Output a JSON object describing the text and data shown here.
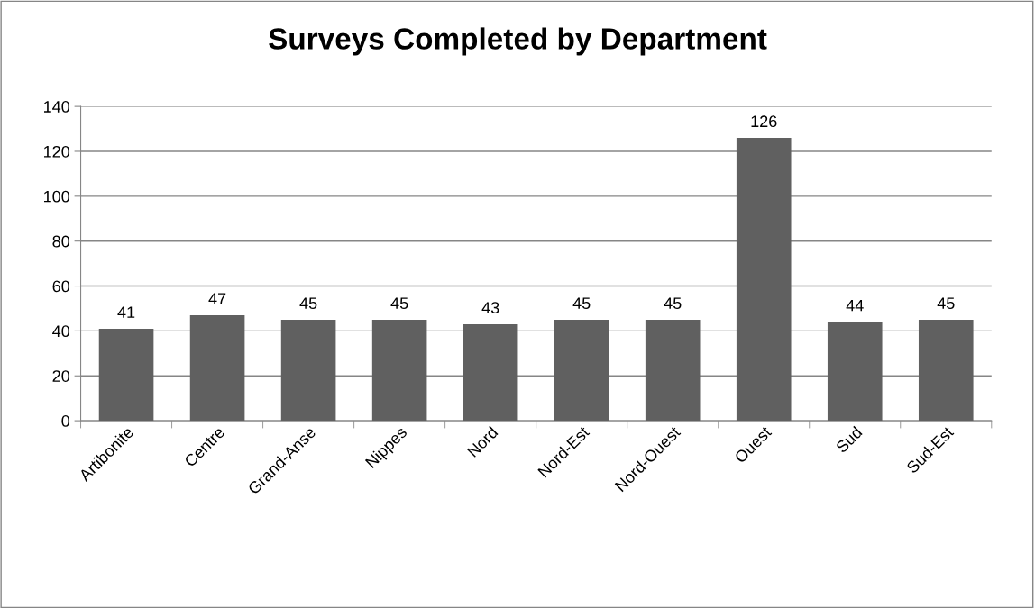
{
  "chart_data": {
    "type": "bar",
    "title": "Surveys Completed by Department",
    "categories": [
      "Artibonite",
      "Centre",
      "Grand-Anse",
      "Nippes",
      "Nord",
      "Nord-Est",
      "Nord-Ouest",
      "Ouest",
      "Sud",
      "Sud-Est"
    ],
    "values": [
      41,
      47,
      45,
      45,
      43,
      45,
      45,
      126,
      44,
      45
    ],
    "color": "#606060",
    "ylim": [
      0,
      140
    ],
    "yticks": [
      0,
      20,
      40,
      60,
      80,
      100,
      120,
      140
    ],
    "grid": "y",
    "data_labels": true,
    "legend": false
  }
}
